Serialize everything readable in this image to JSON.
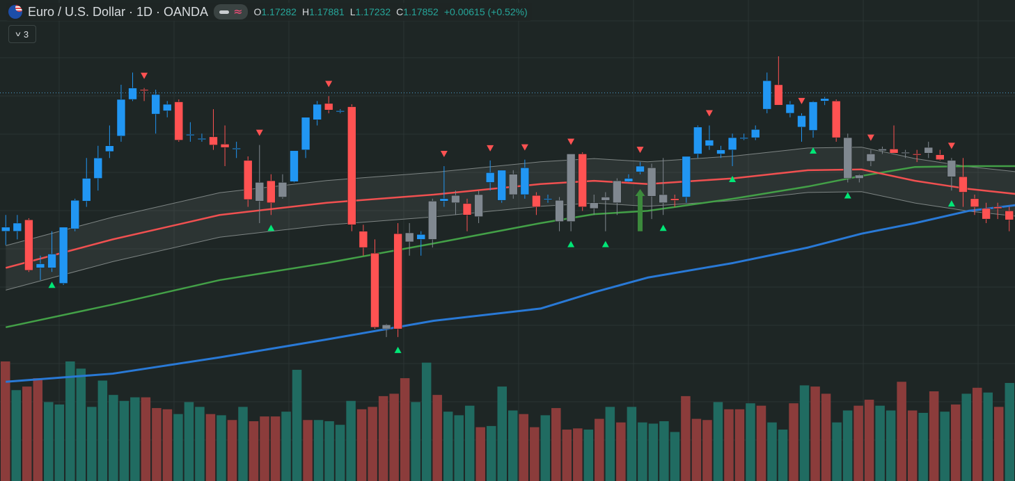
{
  "header": {
    "symbol": "Euro / U.S. Dollar · 1D · OANDA",
    "icons": [
      "eurusd-flag-icon",
      "visibility-icon",
      "indicator-wave-icon"
    ],
    "ohlc": [
      {
        "key": "O",
        "value": "1.17282"
      },
      {
        "key": "H",
        "value": "1.17881"
      },
      {
        "key": "L",
        "value": "1.17232"
      },
      {
        "key": "C",
        "value": "1.17852"
      }
    ],
    "change": "+0.00615 (+0.52%)"
  },
  "indicators_toggle": {
    "count": "3",
    "icon": "chevron-down-icon"
  },
  "colors": {
    "background": "#1e2625",
    "grid": "#2b3433",
    "up_candle": "#2196f3",
    "down_candle": "#ff5252",
    "neutral_candle": "#808890",
    "ema_fast": "#f05050",
    "ema_mid": "#43a047",
    "ema_slow": "#2979d6",
    "band": "#7e8584",
    "volume_up": "#206b61",
    "volume_down": "#8b3c3b",
    "signal_up": "#00e676",
    "signal_down": "#ff5252",
    "price_line": "#4fa0d0",
    "ohlc_value": "#26a69a"
  },
  "chart_data": {
    "type": "candlestick",
    "candles_ohlc_estimated": [
      [
        1.1705,
        1.172,
        1.1683,
        1.17,
        "b"
      ],
      [
        1.17,
        1.172,
        1.169,
        1.171,
        "b"
      ],
      [
        1.1714,
        1.1716,
        1.165,
        1.1652,
        "r"
      ],
      [
        1.1655,
        1.167,
        1.164,
        1.166,
        "b"
      ],
      [
        1.1655,
        1.17,
        1.165,
        1.1672,
        "b"
      ],
      [
        1.1636,
        1.1705,
        1.1634,
        1.1705,
        "b"
      ],
      [
        1.1703,
        1.174,
        1.17,
        1.1738,
        "b"
      ],
      [
        1.1737,
        1.179,
        1.173,
        1.1765,
        "b"
      ],
      [
        1.1765,
        1.1805,
        1.175,
        1.179,
        "b"
      ],
      [
        1.1798,
        1.183,
        1.179,
        1.1805,
        "b"
      ],
      [
        1.1817,
        1.188,
        1.181,
        1.1862,
        "b"
      ],
      [
        1.1862,
        1.1895,
        1.186,
        1.1876,
        "b"
      ],
      [
        1.1874,
        1.1876,
        1.186,
        1.1873,
        "r"
      ],
      [
        1.1868,
        1.1874,
        1.182,
        1.1844,
        "b"
      ],
      [
        1.1848,
        1.186,
        1.184,
        1.1856,
        "b"
      ],
      [
        1.1859,
        1.1862,
        1.181,
        1.1812,
        "r"
      ],
      [
        1.1819,
        1.1834,
        1.181,
        1.1819,
        "b"
      ],
      [
        1.1814,
        1.182,
        1.181,
        1.1814,
        "b"
      ],
      [
        1.1816,
        1.185,
        1.18,
        1.1806,
        "r"
      ],
      [
        1.1807,
        1.183,
        1.178,
        1.1803,
        "r"
      ],
      [
        1.1802,
        1.181,
        1.179,
        1.1802,
        "b"
      ],
      [
        1.1787,
        1.1792,
        1.173,
        1.1739,
        "r"
      ],
      [
        1.1737,
        1.1806,
        1.171,
        1.176,
        "g"
      ],
      [
        1.1762,
        1.177,
        1.172,
        1.1735,
        "r"
      ],
      [
        1.1742,
        1.177,
        1.174,
        1.176,
        "g"
      ],
      [
        1.1761,
        1.1799,
        1.176,
        1.1799,
        "b"
      ],
      [
        1.18,
        1.184,
        1.179,
        1.184,
        "b"
      ],
      [
        1.1837,
        1.186,
        1.183,
        1.1856,
        "b"
      ],
      [
        1.1857,
        1.1866,
        1.1845,
        1.1849,
        "r"
      ],
      [
        1.1848,
        1.185,
        1.1845,
        1.1848,
        "b"
      ],
      [
        1.1853,
        1.1856,
        1.17,
        1.1708,
        "r"
      ],
      [
        1.17,
        1.1708,
        1.167,
        1.168,
        "r"
      ],
      [
        1.1673,
        1.169,
        1.158,
        1.1582,
        "r"
      ],
      [
        1.158,
        1.1586,
        1.157,
        1.1585,
        "g"
      ],
      [
        1.158,
        1.171,
        1.157,
        1.1697,
        "r"
      ],
      [
        1.1687,
        1.171,
        1.167,
        1.1698,
        "g"
      ],
      [
        1.1696,
        1.17,
        1.167,
        1.169,
        "b"
      ],
      [
        1.169,
        1.174,
        1.168,
        1.1737,
        "g"
      ],
      [
        1.1737,
        1.178,
        1.173,
        1.174,
        "b"
      ],
      [
        1.1744,
        1.175,
        1.172,
        1.1735,
        "g"
      ],
      [
        1.1734,
        1.174,
        1.17,
        1.172,
        "r"
      ],
      [
        1.1718,
        1.175,
        1.171,
        1.1745,
        "g"
      ],
      [
        1.176,
        1.1787,
        1.175,
        1.1772,
        "b"
      ],
      [
        1.1738,
        1.1775,
        1.1735,
        1.1775,
        "b"
      ],
      [
        1.1745,
        1.1775,
        1.174,
        1.177,
        "g"
      ],
      [
        1.1745,
        1.1788,
        1.174,
        1.1778,
        "b"
      ],
      [
        1.1744,
        1.1748,
        1.172,
        1.173,
        "r"
      ],
      [
        1.174,
        1.1745,
        1.1735,
        1.174,
        "b"
      ],
      [
        1.1712,
        1.1742,
        1.17,
        1.1738,
        "g"
      ],
      [
        1.1712,
        1.1795,
        1.17,
        1.1795,
        "g"
      ],
      [
        1.173,
        1.1797,
        1.1725,
        1.1795,
        "r"
      ],
      [
        1.1728,
        1.1745,
        1.172,
        1.1735,
        "g"
      ],
      [
        1.1738,
        1.1748,
        1.17,
        1.1742,
        "g"
      ],
      [
        1.1735,
        1.1765,
        1.172,
        1.1762,
        "g"
      ],
      [
        1.1761,
        1.177,
        1.176,
        1.1765,
        "b"
      ],
      [
        1.1773,
        1.1785,
        1.177,
        1.178,
        "b"
      ],
      [
        1.1743,
        1.1783,
        1.1715,
        1.1778,
        "g"
      ],
      [
        1.1735,
        1.179,
        1.172,
        1.1745,
        "g"
      ],
      [
        1.174,
        1.1745,
        1.173,
        1.1738,
        "r"
      ],
      [
        1.1742,
        1.179,
        1.1735,
        1.1792,
        "b"
      ],
      [
        1.1795,
        1.183,
        1.179,
        1.1828,
        "b"
      ],
      [
        1.1812,
        1.183,
        1.18,
        1.1805,
        "b"
      ],
      [
        1.1795,
        1.1805,
        1.179,
        1.18,
        "b"
      ],
      [
        1.18,
        1.182,
        1.178,
        1.1815,
        "b"
      ],
      [
        1.1815,
        1.182,
        1.1812,
        1.1815,
        "b"
      ],
      [
        1.1815,
        1.183,
        1.1812,
        1.1825,
        "b"
      ],
      [
        1.185,
        1.1895,
        1.1845,
        1.1885,
        "b"
      ],
      [
        1.188,
        1.1915,
        1.1855,
        1.1855,
        "r"
      ],
      [
        1.1856,
        1.186,
        1.184,
        1.1845,
        "b"
      ],
      [
        1.1842,
        1.1845,
        1.181,
        1.1828,
        "b"
      ],
      [
        1.1824,
        1.186,
        1.1815,
        1.1859,
        "b"
      ],
      [
        1.1863,
        1.1865,
        1.1855,
        1.186,
        "b"
      ],
      [
        1.186,
        1.1862,
        1.181,
        1.1815,
        "r"
      ],
      [
        1.1815,
        1.182,
        1.176,
        1.1765,
        "g"
      ],
      [
        1.1765,
        1.177,
        1.176,
        1.1769,
        "g"
      ],
      [
        1.1786,
        1.18,
        1.178,
        1.1795,
        "g"
      ],
      [
        1.1799,
        1.1804,
        1.1795,
        1.1801,
        "g"
      ],
      [
        1.1796,
        1.183,
        1.1796,
        1.1801,
        "r"
      ],
      [
        1.1797,
        1.18,
        1.179,
        1.1797,
        "g"
      ],
      [
        1.1794,
        1.18,
        1.1785,
        1.1795,
        "r"
      ],
      [
        1.1796,
        1.181,
        1.179,
        1.1803,
        "g"
      ],
      [
        1.1794,
        1.18,
        1.1787,
        1.1788,
        "r"
      ],
      [
        1.1787,
        1.179,
        1.175,
        1.1767,
        "g"
      ],
      [
        1.1767,
        1.179,
        1.173,
        1.1748,
        "r"
      ],
      [
        1.174,
        1.1745,
        1.172,
        1.173,
        "r"
      ],
      [
        1.1728,
        1.1735,
        1.171,
        1.1715,
        "r"
      ],
      [
        1.173,
        1.1735,
        1.1715,
        1.1728,
        "r"
      ],
      [
        1.1714,
        1.173,
        1.17,
        1.1725,
        "r"
      ]
    ],
    "ema_fast": [
      1.1655,
      1.169,
      1.172,
      1.1735,
      1.1745,
      1.1758,
      1.1762,
      1.1758,
      1.1765,
      1.1775,
      1.1776,
      1.1762,
      1.1752,
      1.1745
    ],
    "ema_mid": [
      1.1582,
      1.161,
      1.164,
      1.1661,
      1.1685,
      1.171,
      1.1721,
      1.1725,
      1.174,
      1.1755,
      1.1768,
      1.1779,
      1.178,
      1.178
    ],
    "ema_slow": [
      1.1515,
      1.1525,
      1.1545,
      1.1567,
      1.159,
      1.1605,
      1.1625,
      1.1643,
      1.1661,
      1.168,
      1.1697,
      1.171,
      1.1725,
      1.1733
    ],
    "ema_x_days": [
      0,
      10,
      20,
      30,
      40,
      50,
      55,
      60,
      68,
      75,
      80,
      85,
      90,
      95
    ],
    "signals_up": [
      4,
      23,
      34,
      49,
      52,
      57,
      63,
      70,
      73,
      82
    ],
    "signals_down": [
      12,
      22,
      28,
      38,
      42,
      45,
      49,
      55,
      61,
      69,
      75,
      82
    ],
    "signal_arrow_up": 55,
    "volume": [
      [
        1.0,
        "d"
      ],
      [
        0.76,
        "u"
      ],
      [
        0.79,
        "d"
      ],
      [
        0.86,
        "d"
      ],
      [
        0.66,
        "u"
      ],
      [
        0.64,
        "u"
      ],
      [
        1.0,
        "u"
      ],
      [
        0.94,
        "u"
      ],
      [
        0.62,
        "u"
      ],
      [
        0.84,
        "u"
      ],
      [
        0.72,
        "u"
      ],
      [
        0.67,
        "u"
      ],
      [
        0.7,
        "u"
      ],
      [
        0.7,
        "d"
      ],
      [
        0.61,
        "d"
      ],
      [
        0.6,
        "d"
      ],
      [
        0.56,
        "u"
      ],
      [
        0.66,
        "u"
      ],
      [
        0.62,
        "u"
      ],
      [
        0.56,
        "d"
      ],
      [
        0.55,
        "u"
      ],
      [
        0.51,
        "d"
      ],
      [
        0.62,
        "u"
      ],
      [
        0.5,
        "d"
      ],
      [
        0.54,
        "d"
      ],
      [
        0.54,
        "d"
      ],
      [
        0.58,
        "u"
      ],
      [
        0.93,
        "u"
      ],
      [
        0.51,
        "d"
      ],
      [
        0.51,
        "u"
      ],
      [
        0.5,
        "u"
      ],
      [
        0.47,
        "u"
      ],
      [
        0.67,
        "u"
      ],
      [
        0.6,
        "d"
      ],
      [
        0.62,
        "d"
      ],
      [
        0.71,
        "d"
      ],
      [
        0.73,
        "d"
      ],
      [
        0.86,
        "d"
      ],
      [
        0.66,
        "u"
      ],
      [
        0.99,
        "u"
      ],
      [
        0.72,
        "d"
      ],
      [
        0.58,
        "u"
      ],
      [
        0.55,
        "u"
      ],
      [
        0.63,
        "u"
      ],
      [
        0.45,
        "d"
      ],
      [
        0.46,
        "u"
      ],
      [
        0.79,
        "u"
      ],
      [
        0.59,
        "u"
      ],
      [
        0.56,
        "d"
      ],
      [
        0.45,
        "d"
      ],
      [
        0.55,
        "u"
      ],
      [
        0.61,
        "d"
      ],
      [
        0.43,
        "d"
      ],
      [
        0.44,
        "d"
      ],
      [
        0.43,
        "u"
      ],
      [
        0.52,
        "d"
      ],
      [
        0.62,
        "u"
      ],
      [
        0.49,
        "d"
      ],
      [
        0.62,
        "u"
      ],
      [
        0.49,
        "u"
      ],
      [
        0.48,
        "u"
      ],
      [
        0.5,
        "u"
      ],
      [
        0.41,
        "u"
      ],
      [
        0.71,
        "d"
      ],
      [
        0.52,
        "d"
      ],
      [
        0.51,
        "d"
      ],
      [
        0.66,
        "u"
      ],
      [
        0.6,
        "d"
      ],
      [
        0.6,
        "d"
      ],
      [
        0.65,
        "u"
      ],
      [
        0.63,
        "d"
      ],
      [
        0.49,
        "u"
      ],
      [
        0.43,
        "u"
      ],
      [
        0.65,
        "d"
      ],
      [
        0.8,
        "u"
      ],
      [
        0.79,
        "d"
      ],
      [
        0.73,
        "d"
      ],
      [
        0.49,
        "u"
      ],
      [
        0.59,
        "u"
      ],
      [
        0.63,
        "d"
      ],
      [
        0.68,
        "d"
      ],
      [
        0.63,
        "u"
      ],
      [
        0.59,
        "u"
      ],
      [
        0.83,
        "d"
      ],
      [
        0.59,
        "d"
      ],
      [
        0.57,
        "u"
      ],
      [
        0.75,
        "d"
      ],
      [
        0.58,
        "u"
      ],
      [
        0.64,
        "d"
      ],
      [
        0.73,
        "u"
      ],
      [
        0.78,
        "d"
      ],
      [
        0.74,
        "u"
      ],
      [
        0.62,
        "d"
      ],
      [
        0.82,
        "u"
      ]
    ],
    "ylim": [
      1.154,
      1.195
    ],
    "last_price_line": 1.187,
    "grid": true
  }
}
